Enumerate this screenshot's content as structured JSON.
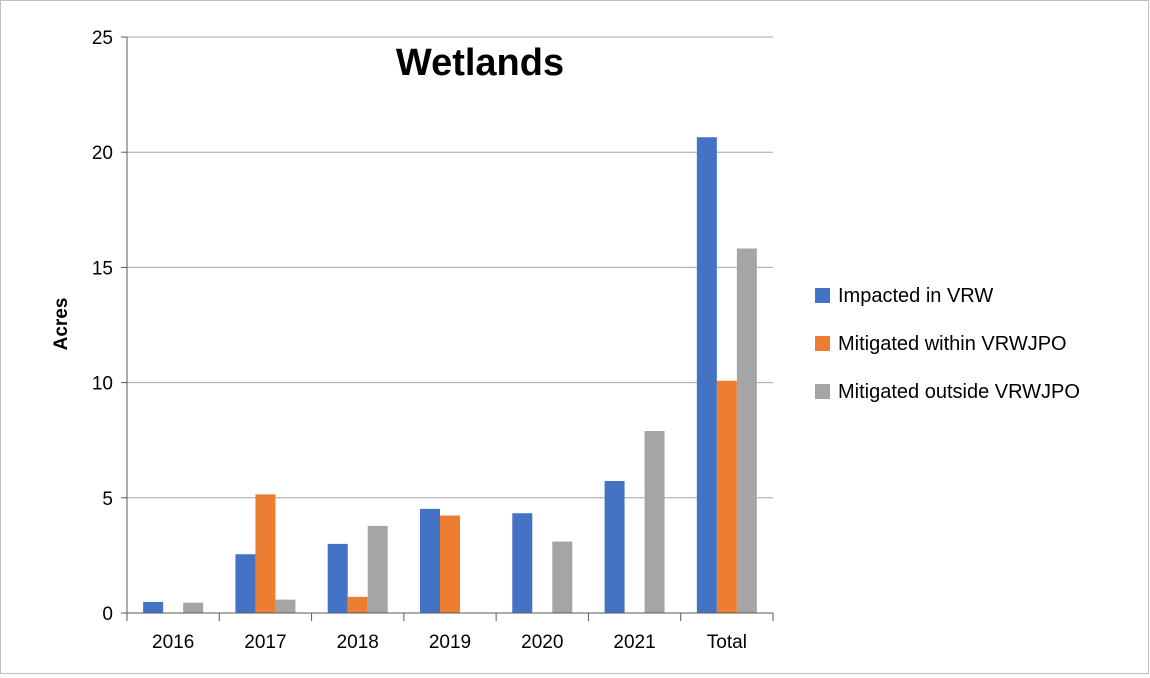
{
  "chart_data": {
    "type": "bar",
    "title": "Wetlands",
    "xlabel": "",
    "ylabel": "Acres",
    "ylim": [
      0,
      25
    ],
    "yticks": [
      0,
      5,
      10,
      15,
      20,
      25
    ],
    "grid": true,
    "legend_position": "right",
    "categories": [
      "2016",
      "2017",
      "2018",
      "2019",
      "2020",
      "2021",
      "Total"
    ],
    "series": [
      {
        "name": "Impacted in VRW",
        "color": "#4472c4",
        "values": [
          0.48,
          2.55,
          3.0,
          4.52,
          4.33,
          5.73,
          20.65
        ]
      },
      {
        "name": "Mitigated within VRWJPO",
        "color": "#ed7d31",
        "values": [
          0,
          5.15,
          0.7,
          4.23,
          0,
          0,
          10.08
        ]
      },
      {
        "name": "Mitigated outside VRWJPO",
        "color": "#a5a5a5",
        "values": [
          0.45,
          0.58,
          3.78,
          0,
          3.1,
          7.9,
          15.82
        ]
      }
    ]
  }
}
